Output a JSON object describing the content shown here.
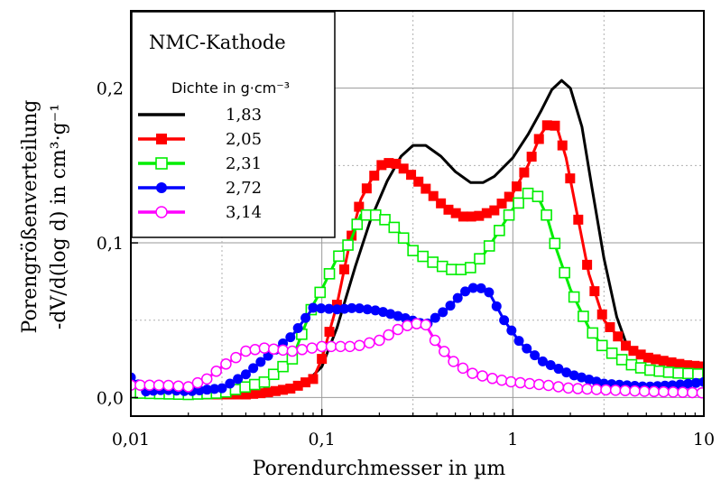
{
  "chart_data": {
    "type": "line",
    "title": "",
    "xlabel": "Porendurchmesser in µm",
    "ylabel_line1": "Porengrößenverteilung",
    "ylabel_line2": "-dV/d(log d) in cm³·g⁻¹",
    "x_scale": "log",
    "xlim": [
      0.01,
      10
    ],
    "ylim": [
      -0.012,
      0.25
    ],
    "x_ticks": [
      {
        "value": 0.01,
        "label": "0,01"
      },
      {
        "value": 0.1,
        "label": "0,1"
      },
      {
        "value": 1,
        "label": "1"
      },
      {
        "value": 10,
        "label": "10"
      }
    ],
    "y_ticks": [
      {
        "value": 0.0,
        "label": "0,0"
      },
      {
        "value": 0.1,
        "label": "0,1"
      },
      {
        "value": 0.2,
        "label": "0,2"
      }
    ],
    "grid": true,
    "legend": {
      "title": "NMC-Kathode",
      "subtitle": "Dichte in g·cm⁻³",
      "placement": "top-left"
    },
    "series": [
      {
        "name": "1,83",
        "color": "#000000",
        "marker": "none",
        "points": [
          [
            0.01,
            0.002
          ],
          [
            0.02,
            0.001
          ],
          [
            0.04,
            0.002
          ],
          [
            0.06,
            0.004
          ],
          [
            0.08,
            0.008
          ],
          [
            0.1,
            0.02
          ],
          [
            0.12,
            0.045
          ],
          [
            0.15,
            0.085
          ],
          [
            0.18,
            0.115
          ],
          [
            0.22,
            0.14
          ],
          [
            0.26,
            0.156
          ],
          [
            0.3,
            0.163
          ],
          [
            0.35,
            0.163
          ],
          [
            0.42,
            0.156
          ],
          [
            0.5,
            0.146
          ],
          [
            0.6,
            0.139
          ],
          [
            0.7,
            0.139
          ],
          [
            0.8,
            0.143
          ],
          [
            1.0,
            0.155
          ],
          [
            1.2,
            0.17
          ],
          [
            1.4,
            0.185
          ],
          [
            1.6,
            0.199
          ],
          [
            1.8,
            0.205
          ],
          [
            2.0,
            0.2
          ],
          [
            2.3,
            0.175
          ],
          [
            2.6,
            0.135
          ],
          [
            3.0,
            0.09
          ],
          [
            3.5,
            0.052
          ],
          [
            4.0,
            0.032
          ],
          [
            5.0,
            0.025
          ],
          [
            6.0,
            0.024
          ],
          [
            8.0,
            0.022
          ],
          [
            10,
            0.02
          ]
        ]
      },
      {
        "name": "2,05",
        "color": "#ff0000",
        "marker": "square-filled",
        "points": [
          [
            0.01,
            0.003
          ],
          [
            0.02,
            0.002
          ],
          [
            0.04,
            0.002
          ],
          [
            0.05,
            0.003
          ],
          [
            0.07,
            0.006
          ],
          [
            0.09,
            0.012
          ],
          [
            0.1,
            0.025
          ],
          [
            0.12,
            0.06
          ],
          [
            0.14,
            0.1
          ],
          [
            0.16,
            0.128
          ],
          [
            0.18,
            0.14
          ],
          [
            0.21,
            0.152
          ],
          [
            0.25,
            0.151
          ],
          [
            0.3,
            0.143
          ],
          [
            0.35,
            0.135
          ],
          [
            0.45,
            0.122
          ],
          [
            0.55,
            0.117
          ],
          [
            0.65,
            0.117
          ],
          [
            0.8,
            0.121
          ],
          [
            1.0,
            0.132
          ],
          [
            1.2,
            0.15
          ],
          [
            1.4,
            0.17
          ],
          [
            1.55,
            0.178
          ],
          [
            1.7,
            0.175
          ],
          [
            1.9,
            0.155
          ],
          [
            2.2,
            0.115
          ],
          [
            2.5,
            0.08
          ],
          [
            3.0,
            0.05
          ],
          [
            4.0,
            0.032
          ],
          [
            5.0,
            0.026
          ],
          [
            6.0,
            0.024
          ],
          [
            8.0,
            0.021
          ],
          [
            10,
            0.02
          ]
        ]
      },
      {
        "name": "2,31",
        "color": "#00ee00",
        "marker": "square-open",
        "points": [
          [
            0.01,
            0.003
          ],
          [
            0.02,
            0.002
          ],
          [
            0.03,
            0.003
          ],
          [
            0.05,
            0.01
          ],
          [
            0.07,
            0.025
          ],
          [
            0.09,
            0.06
          ],
          [
            0.1,
            0.07
          ],
          [
            0.12,
            0.09
          ],
          [
            0.14,
            0.1
          ],
          [
            0.16,
            0.118
          ],
          [
            0.2,
            0.118
          ],
          [
            0.25,
            0.108
          ],
          [
            0.3,
            0.095
          ],
          [
            0.4,
            0.086
          ],
          [
            0.5,
            0.082
          ],
          [
            0.6,
            0.084
          ],
          [
            0.7,
            0.092
          ],
          [
            0.85,
            0.108
          ],
          [
            1.0,
            0.122
          ],
          [
            1.2,
            0.132
          ],
          [
            1.35,
            0.13
          ],
          [
            1.5,
            0.118
          ],
          [
            1.7,
            0.095
          ],
          [
            2.0,
            0.07
          ],
          [
            2.5,
            0.045
          ],
          [
            3.0,
            0.032
          ],
          [
            4.0,
            0.022
          ],
          [
            5.0,
            0.018
          ],
          [
            7.0,
            0.016
          ],
          [
            10,
            0.015
          ]
        ]
      },
      {
        "name": "2,72",
        "color": "#0000ff",
        "marker": "circle-filled",
        "points": [
          [
            0.01,
            0.013
          ],
          [
            0.012,
            0.004
          ],
          [
            0.015,
            0.005
          ],
          [
            0.02,
            0.004
          ],
          [
            0.03,
            0.006
          ],
          [
            0.04,
            0.015
          ],
          [
            0.05,
            0.025
          ],
          [
            0.07,
            0.04
          ],
          [
            0.09,
            0.058
          ],
          [
            0.12,
            0.057
          ],
          [
            0.15,
            0.058
          ],
          [
            0.2,
            0.056
          ],
          [
            0.28,
            0.051
          ],
          [
            0.35,
            0.047
          ],
          [
            0.45,
            0.057
          ],
          [
            0.55,
            0.068
          ],
          [
            0.65,
            0.072
          ],
          [
            0.75,
            0.068
          ],
          [
            0.9,
            0.05
          ],
          [
            1.1,
            0.035
          ],
          [
            1.4,
            0.024
          ],
          [
            2.0,
            0.015
          ],
          [
            3.0,
            0.009
          ],
          [
            5.0,
            0.007
          ],
          [
            7.0,
            0.008
          ],
          [
            10,
            0.01
          ]
        ]
      },
      {
        "name": "3,14",
        "color": "#ff00ff",
        "marker": "circle-open",
        "points": [
          [
            0.01,
            0.008
          ],
          [
            0.015,
            0.008
          ],
          [
            0.02,
            0.007
          ],
          [
            0.025,
            0.012
          ],
          [
            0.03,
            0.02
          ],
          [
            0.04,
            0.03
          ],
          [
            0.05,
            0.032
          ],
          [
            0.07,
            0.03
          ],
          [
            0.1,
            0.033
          ],
          [
            0.15,
            0.033
          ],
          [
            0.2,
            0.037
          ],
          [
            0.25,
            0.044
          ],
          [
            0.3,
            0.048
          ],
          [
            0.35,
            0.047
          ],
          [
            0.4,
            0.035
          ],
          [
            0.5,
            0.022
          ],
          [
            0.6,
            0.016
          ],
          [
            0.8,
            0.012
          ],
          [
            1.0,
            0.01
          ],
          [
            1.5,
            0.008
          ],
          [
            2.0,
            0.006
          ],
          [
            3.0,
            0.005
          ],
          [
            5.0,
            0.004
          ],
          [
            10,
            0.003
          ]
        ]
      }
    ]
  }
}
